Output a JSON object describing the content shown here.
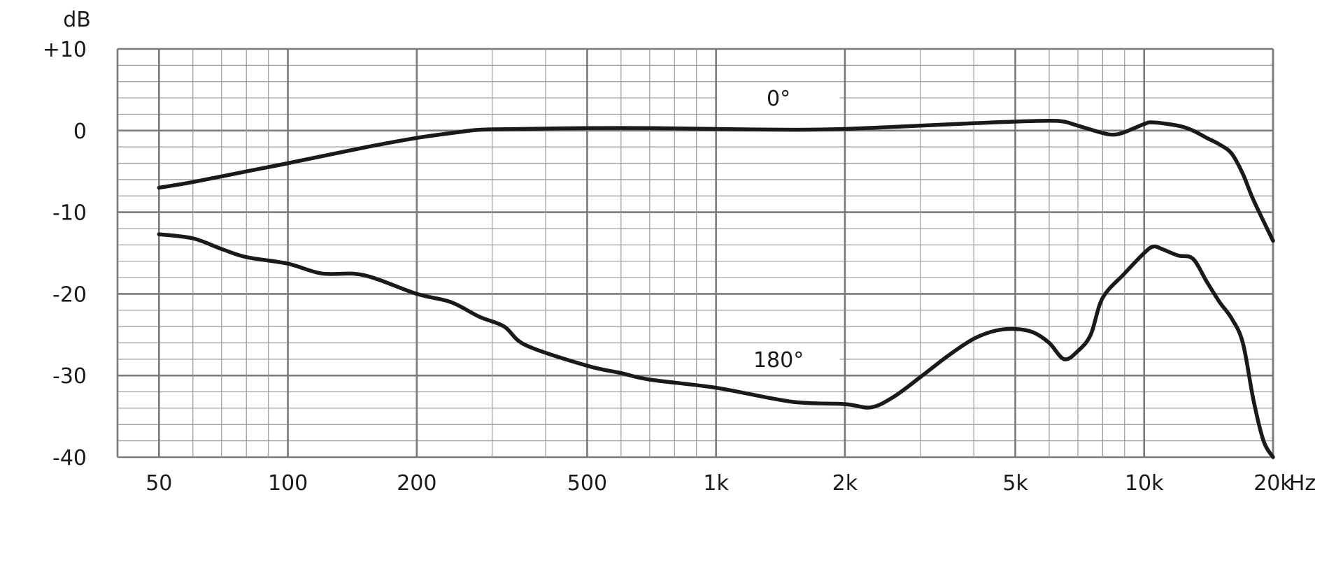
{
  "chart_data": {
    "type": "line",
    "title": "",
    "xlabel": "Hz",
    "ylabel": "dB",
    "xscale": "log",
    "xlim": [
      40,
      20000
    ],
    "ylim": [
      -40,
      10
    ],
    "grid": true,
    "x_ticks": [
      {
        "value": 50,
        "label": "50"
      },
      {
        "value": 100,
        "label": "100"
      },
      {
        "value": 200,
        "label": "200"
      },
      {
        "value": 500,
        "label": "500"
      },
      {
        "value": 1000,
        "label": "1k"
      },
      {
        "value": 2000,
        "label": "2k"
      },
      {
        "value": 5000,
        "label": "5k"
      },
      {
        "value": 10000,
        "label": "10k"
      },
      {
        "value": 20000,
        "label": "20k"
      }
    ],
    "y_ticks": [
      {
        "value": 10,
        "label": "+10"
      },
      {
        "value": 0,
        "label": "0"
      },
      {
        "value": -10,
        "label": "-10"
      },
      {
        "value": -20,
        "label": "-20"
      },
      {
        "value": -30,
        "label": "-30"
      },
      {
        "value": -40,
        "label": "-40"
      }
    ],
    "series": [
      {
        "name": "0°",
        "label_position": {
          "x": 1400,
          "y": 4
        },
        "x": [
          50,
          60,
          80,
          100,
          150,
          200,
          250,
          280,
          350,
          500,
          700,
          1000,
          1500,
          2000,
          3000,
          4000,
          5000,
          6000,
          6500,
          7000,
          8000,
          8500,
          9000,
          10000,
          10500,
          12000,
          13000,
          14000,
          15000,
          16000,
          17000,
          18000,
          20000
        ],
        "y": [
          -7,
          -6.3,
          -5,
          -4,
          -2.1,
          -0.9,
          -0.2,
          0.1,
          0.2,
          0.3,
          0.3,
          0.2,
          0.1,
          0.2,
          0.6,
          0.9,
          1.1,
          1.2,
          1.1,
          0.6,
          -0.3,
          -0.5,
          -0.2,
          0.8,
          1.0,
          0.6,
          0,
          -0.9,
          -1.7,
          -2.8,
          -5.3,
          -8.5,
          -13.5
        ]
      },
      {
        "name": "180°",
        "label_position": {
          "x": 1400,
          "y": -28
        },
        "x": [
          50,
          60,
          70,
          80,
          100,
          120,
          150,
          200,
          240,
          280,
          320,
          360,
          500,
          600,
          700,
          1000,
          1500,
          2000,
          2300,
          2600,
          3000,
          3500,
          4000,
          4500,
          5000,
          5500,
          6000,
          6500,
          7000,
          7500,
          8000,
          9000,
          10000,
          10500,
          11000,
          12000,
          13000,
          14000,
          15000,
          16000,
          17000,
          18000,
          19000,
          20000
        ],
        "y": [
          -12.7,
          -13.2,
          -14.5,
          -15.5,
          -16.3,
          -17.5,
          -17.7,
          -20,
          -21,
          -22.8,
          -24,
          -26.3,
          -28.8,
          -29.7,
          -30.5,
          -31.5,
          -33.2,
          -33.5,
          -33.9,
          -32.6,
          -30.2,
          -27.5,
          -25.5,
          -24.5,
          -24.3,
          -24.7,
          -26,
          -28,
          -27,
          -25,
          -20.5,
          -17.5,
          -15,
          -14.2,
          -14.5,
          -15.3,
          -15.7,
          -18.5,
          -21,
          -23,
          -26,
          -33,
          -38,
          -40
        ]
      }
    ]
  }
}
